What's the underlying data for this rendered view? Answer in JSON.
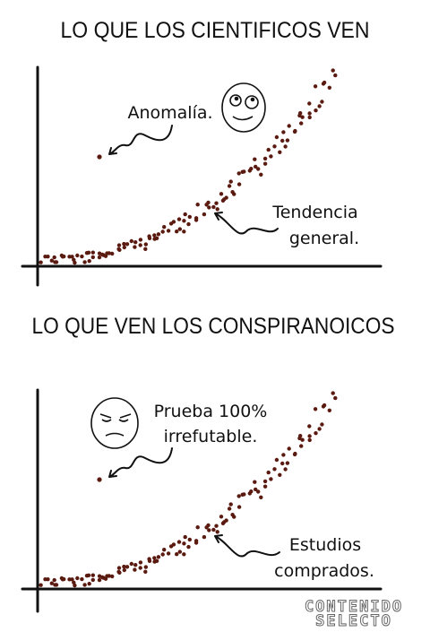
{
  "panels": [
    {
      "title": "LO QUE LOS CIENTIFICOS VEN",
      "outlier_note": [
        "Anomalía."
      ],
      "trend_note": [
        "Tendencia",
        "general."
      ]
    },
    {
      "title": "LO QUE VEN LOS CONSPIRANOICOS",
      "outlier_note": [
        "Prueba 100%",
        "irrefutable."
      ],
      "trend_note": [
        "Estudios",
        "comprados."
      ]
    }
  ],
  "watermark": [
    "CONTENIDO",
    "SELECTO"
  ]
}
